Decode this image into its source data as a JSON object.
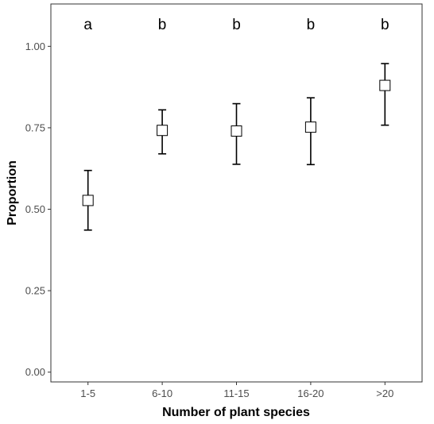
{
  "chart_data": {
    "type": "scatter",
    "title": "",
    "xlabel": "Number of plant species",
    "ylabel": "Proportion",
    "categories": [
      "1-5",
      "6-10",
      "11-15",
      "16-20",
      ">20"
    ],
    "values": [
      0.527,
      0.742,
      0.74,
      0.752,
      0.88
    ],
    "lower": [
      0.436,
      0.67,
      0.638,
      0.637,
      0.758
    ],
    "upper": [
      0.619,
      0.805,
      0.824,
      0.842,
      0.947
    ],
    "group_letters": [
      "a",
      "b",
      "b",
      "b",
      "b"
    ],
    "ylim": [
      -0.03,
      1.13
    ],
    "yticks": [
      0.0,
      0.25,
      0.5,
      0.75,
      1.0
    ],
    "ytick_labels": [
      "0.00",
      "0.25",
      "0.50",
      "0.75",
      "1.00"
    ],
    "marker": "open-square",
    "grid": false,
    "legend": "none",
    "colors": {
      "marker_fill": "#ffffff",
      "marker_stroke": "#000000",
      "errorbar": "#000000",
      "panel_border": "#333333"
    }
  }
}
